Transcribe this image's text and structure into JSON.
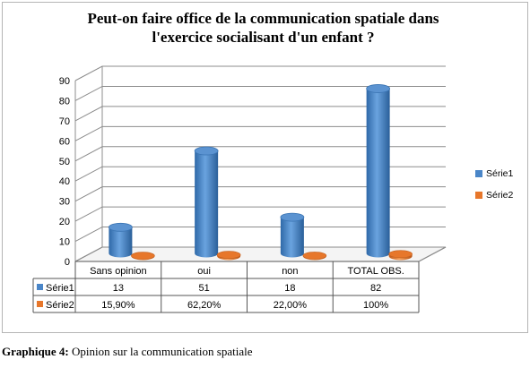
{
  "title_lines": [
    "Peut-on faire office de la communication spatiale dans",
    "l'exercice socialisant d'un enfant ?"
  ],
  "caption": {
    "label": "Graphique 4:",
    "text": " Opinion sur la communication spatiale"
  },
  "colors": {
    "serie1": "#4a86c8",
    "serie2": "#e7772b",
    "grid": "#8c8c8c",
    "wall": "#ffffff"
  },
  "chart_data": {
    "type": "bar",
    "categories": [
      "Sans opinion",
      "oui",
      "non",
      "TOTAL OBS."
    ],
    "series": [
      {
        "name": "Série1",
        "values": [
          13,
          51,
          18,
          82
        ],
        "table_values": [
          "13",
          "51",
          "18",
          "82"
        ]
      },
      {
        "name": "Série2",
        "values": [
          0.159,
          0.622,
          0.22,
          1.0
        ],
        "table_values": [
          "15,90%",
          "62,20%",
          "22,00%",
          "100%"
        ]
      }
    ],
    "ylim": [
      0,
      90
    ],
    "yticks": [
      0,
      10,
      20,
      30,
      40,
      50,
      60,
      70,
      80,
      90
    ],
    "grid": true,
    "legend_position": "right",
    "data_table": true,
    "style": "3d-cylinder"
  }
}
